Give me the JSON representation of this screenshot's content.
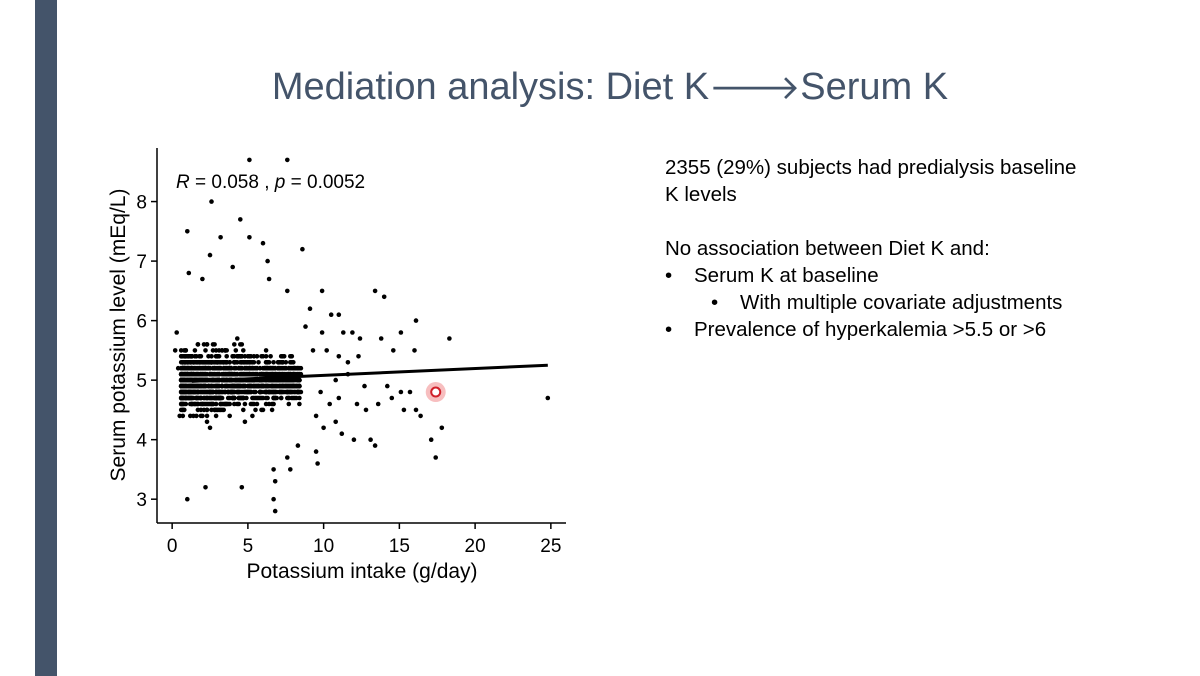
{
  "slide": {
    "title_prefix": "Mediation analysis: Diet K",
    "title_arrow": "🡒",
    "title_suffix": "Serum K",
    "accent_color": "#44546a"
  },
  "bullets": {
    "p1_line1": "2355 (29%) subjects had predialysis baseline",
    "p1_line2": "K levels",
    "p2": "No association between Diet K and:",
    "b1": "Serum K at baseline",
    "b1_sub": "With multiple covariate adjustments",
    "b2": "Prevalence of hyperkalemia >5.5 or >6",
    "bullet_glyph": "•"
  },
  "chart_data": {
    "type": "scatter",
    "title": "",
    "xlabel": "Potassium intake (g/day)",
    "ylabel": "Serum potassium level (mEq/L)",
    "xlim": [
      -1,
      26
    ],
    "ylim": [
      2.6,
      8.9
    ],
    "xticks": [
      0,
      5,
      10,
      15,
      20,
      25
    ],
    "xtick_labels": [
      "0",
      "5",
      "10",
      "15",
      "20",
      "25"
    ],
    "yticks": [
      3,
      4,
      5,
      6,
      7,
      8
    ],
    "ytick_labels": [
      "3",
      "4",
      "5",
      "6",
      "7",
      "8"
    ],
    "annotation": {
      "R_sym": "R",
      "R_val": " = 0.058 , ",
      "p_sym": "p",
      "p_val": " = 0.0052"
    },
    "regression_line": {
      "x": [
        1.3,
        24.8
      ],
      "y": [
        4.98,
        5.25
      ]
    },
    "highlight": {
      "x": 17.4,
      "y": 4.8
    },
    "grid": false,
    "cluster_range": {
      "x": [
        0.6,
        8.5
      ],
      "y": [
        3.2,
        6.6
      ]
    },
    "points": [
      [
        5.1,
        8.7
      ],
      [
        7.6,
        8.7
      ],
      [
        2.6,
        8.0
      ],
      [
        4.5,
        7.7
      ],
      [
        1.0,
        7.5
      ],
      [
        3.2,
        7.4
      ],
      [
        5.1,
        7.4
      ],
      [
        6.0,
        7.3
      ],
      [
        8.6,
        7.2
      ],
      [
        2.5,
        7.1
      ],
      [
        6.3,
        7.0
      ],
      [
        1.1,
        6.8
      ],
      [
        2.0,
        6.7
      ],
      [
        4.0,
        6.9
      ],
      [
        6.4,
        6.7
      ],
      [
        7.6,
        6.5
      ],
      [
        9.9,
        6.5
      ],
      [
        13.4,
        6.5
      ],
      [
        14.0,
        6.4
      ],
      [
        11.0,
        6.1
      ],
      [
        9.1,
        6.2
      ],
      [
        8.8,
        5.9
      ],
      [
        9.9,
        5.8
      ],
      [
        10.5,
        6.1
      ],
      [
        11.3,
        5.8
      ],
      [
        11.9,
        5.8
      ],
      [
        12.4,
        5.7
      ],
      [
        13.8,
        5.7
      ],
      [
        14.6,
        5.5
      ],
      [
        15.1,
        5.8
      ],
      [
        16.0,
        5.5
      ],
      [
        16.1,
        6.0
      ],
      [
        18.3,
        5.7
      ],
      [
        9.3,
        5.5
      ],
      [
        10.2,
        5.5
      ],
      [
        11.0,
        5.4
      ],
      [
        11.6,
        5.3
      ],
      [
        12.3,
        5.4
      ],
      [
        10.8,
        5.0
      ],
      [
        11.6,
        5.1
      ],
      [
        12.7,
        4.9
      ],
      [
        9.8,
        4.8
      ],
      [
        10.4,
        4.6
      ],
      [
        11.0,
        4.7
      ],
      [
        12.2,
        4.6
      ],
      [
        12.8,
        4.5
      ],
      [
        13.6,
        4.6
      ],
      [
        14.5,
        4.7
      ],
      [
        15.1,
        4.8
      ],
      [
        15.7,
        4.8
      ],
      [
        16.1,
        4.5
      ],
      [
        16.4,
        4.4
      ],
      [
        15.3,
        4.5
      ],
      [
        14.2,
        4.9
      ],
      [
        9.5,
        4.4
      ],
      [
        10.0,
        4.2
      ],
      [
        10.8,
        4.3
      ],
      [
        11.2,
        4.1
      ],
      [
        12.0,
        4.0
      ],
      [
        13.1,
        4.0
      ],
      [
        13.4,
        3.9
      ],
      [
        9.5,
        3.8
      ],
      [
        9.6,
        3.6
      ],
      [
        8.3,
        3.9
      ],
      [
        7.6,
        3.7
      ],
      [
        7.8,
        3.5
      ],
      [
        6.7,
        3.5
      ],
      [
        6.8,
        3.3
      ],
      [
        6.7,
        3.0
      ],
      [
        6.8,
        2.8
      ],
      [
        4.6,
        3.2
      ],
      [
        1.0,
        3.0
      ],
      [
        2.2,
        3.2
      ],
      [
        17.1,
        4.0
      ],
      [
        17.4,
        3.7
      ],
      [
        17.8,
        4.2
      ],
      [
        24.8,
        4.7
      ],
      [
        0.4,
        5.2
      ],
      [
        0.2,
        5.5
      ],
      [
        0.3,
        5.8
      ],
      [
        0.5,
        4.4
      ]
    ]
  }
}
